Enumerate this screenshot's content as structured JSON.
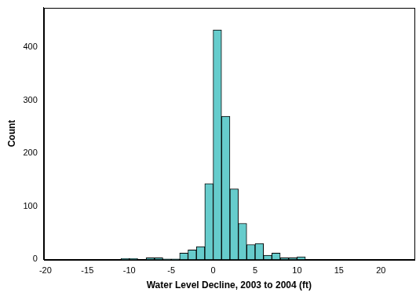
{
  "chart_data": {
    "type": "histogram",
    "x_label": "Water Level Decline, 2003 to 2004 (ft)",
    "y_label": "Count",
    "bins": [
      -20,
      -19,
      -18,
      -17,
      -16,
      -15,
      -14,
      -13,
      -12,
      -11,
      -10,
      -9,
      -8,
      -7,
      -6,
      -5,
      -4,
      -3,
      -2,
      -1,
      0,
      1,
      2,
      3,
      4,
      5,
      6,
      7,
      8,
      9,
      10,
      11,
      12,
      13,
      14,
      15,
      16,
      17,
      18,
      19,
      20,
      21,
      22,
      23
    ],
    "values": [
      0,
      0,
      0,
      0,
      0,
      0,
      0,
      0,
      0,
      2,
      2,
      0,
      3,
      3,
      1,
      1,
      12,
      18,
      24,
      143,
      433,
      270,
      133,
      68,
      28,
      30,
      8,
      12,
      3,
      3,
      5,
      0,
      0,
      0,
      0,
      0,
      0,
      0,
      0,
      0,
      0,
      0,
      0
    ],
    "color": "#66cccc",
    "xlim": [
      -20.2,
      24
    ],
    "ylim": [
      0,
      475
    ],
    "xticks": [
      -20,
      -15,
      -10,
      -5,
      0,
      5,
      10,
      15,
      20
    ],
    "yticks": [
      0,
      100,
      200,
      300,
      400
    ],
    "grid": false
  }
}
